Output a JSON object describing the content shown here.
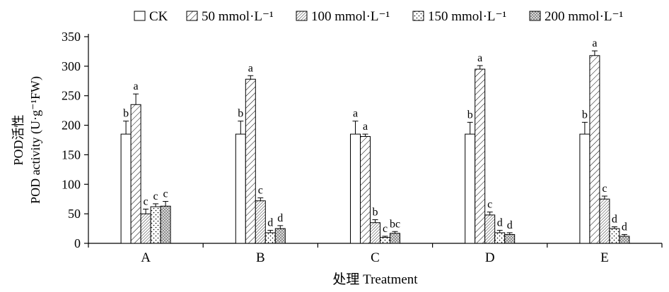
{
  "chart_data": {
    "type": "bar",
    "title": "",
    "xlabel": "处理 Treatment",
    "ylabel_line1": "POD活性",
    "ylabel_line2": "POD activity (U·g⁻¹FW)",
    "ylim": [
      0,
      350
    ],
    "ytick_step": 50,
    "grid": false,
    "legend_position": "top",
    "categories": [
      "A",
      "B",
      "C",
      "D",
      "E"
    ],
    "series": [
      {
        "name": "CK",
        "pattern": "plain",
        "values": [
          185,
          185,
          185,
          185,
          185
        ],
        "errors": [
          22,
          22,
          22,
          20,
          20
        ],
        "letters": [
          "b",
          "b",
          "a",
          "b",
          "b"
        ]
      },
      {
        "name": "50 mmol·L⁻¹",
        "pattern": "hatch-light",
        "values": [
          235,
          278,
          181,
          295,
          318
        ],
        "errors": [
          18,
          6,
          4,
          6,
          8
        ],
        "letters": [
          "a",
          "a",
          "a",
          "a",
          "a"
        ]
      },
      {
        "name": "100 mmol·L⁻¹",
        "pattern": "hatch-dense",
        "values": [
          50,
          72,
          35,
          48,
          75
        ],
        "errors": [
          8,
          5,
          5,
          5,
          5
        ],
        "letters": [
          "c",
          "c",
          "b",
          "c",
          "c"
        ]
      },
      {
        "name": "150 mmol·L⁻¹",
        "pattern": "dots-sparse",
        "values": [
          62,
          18,
          10,
          18,
          25
        ],
        "errors": [
          5,
          4,
          2,
          4,
          3
        ],
        "letters": [
          "c",
          "d",
          "c",
          "d",
          "d"
        ]
      },
      {
        "name": "200 mmol·L⁻¹",
        "pattern": "dots-dense",
        "values": [
          63,
          25,
          17,
          15,
          12
        ],
        "errors": [
          8,
          5,
          3,
          3,
          3
        ],
        "letters": [
          "c",
          "d",
          "bc",
          "d",
          "d"
        ]
      }
    ]
  }
}
